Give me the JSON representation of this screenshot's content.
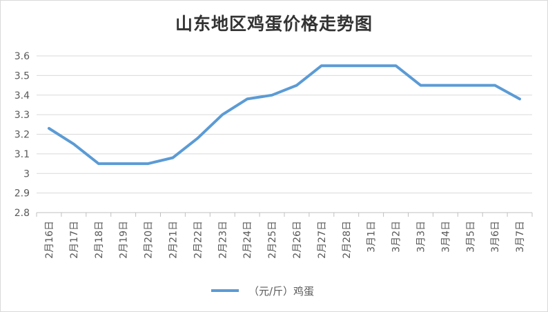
{
  "chart_data": {
    "type": "line",
    "title": "山东地区鸡蛋价格走势图",
    "xlabel": "",
    "ylabel": "",
    "categories": [
      "2月16日",
      "2月17日",
      "2月18日",
      "2月19日",
      "2月20日",
      "2月21日",
      "2月22日",
      "2月23日",
      "2月24日",
      "2月25日",
      "2月26日",
      "2月27日",
      "2月28日",
      "3月1日",
      "3月2日",
      "3月3日",
      "3月4日",
      "3月5日",
      "3月6日",
      "3月7日"
    ],
    "series": [
      {
        "name": "（元/斤）鸡蛋",
        "color": "#5b9bd5",
        "values": [
          3.23,
          3.15,
          3.05,
          3.05,
          3.05,
          3.08,
          3.18,
          3.3,
          3.38,
          3.4,
          3.45,
          3.55,
          3.55,
          3.55,
          3.55,
          3.45,
          3.45,
          3.45,
          3.45,
          3.38
        ]
      }
    ],
    "ylim": [
      2.8,
      3.6
    ],
    "yticks": [
      "2.8",
      "2.9",
      "3",
      "3.1",
      "3.2",
      "3.3",
      "3.4",
      "3.5",
      "3.6"
    ],
    "grid": true,
    "legend_position": "bottom"
  }
}
